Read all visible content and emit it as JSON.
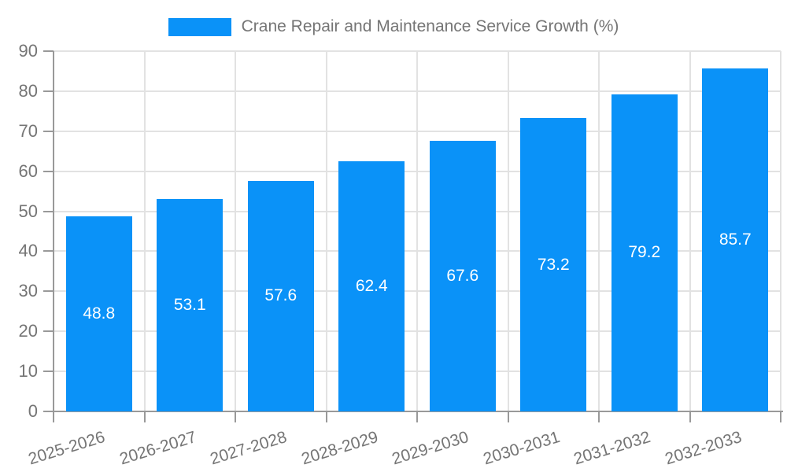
{
  "chart_data": {
    "type": "bar",
    "title": "Crane Repair and Maintenance Service Growth (%)",
    "legend": {
      "label": "Crane Repair and Maintenance Service Growth (%)",
      "position": "top-center",
      "swatch": "rectangle"
    },
    "categories": [
      "2025-2026",
      "2026-2027",
      "2027-2028",
      "2028-2029",
      "2029-2030",
      "2030-2031",
      "2031-2032",
      "2032-2033"
    ],
    "values": [
      48.8,
      53.1,
      57.6,
      62.4,
      67.6,
      73.2,
      79.2,
      85.7
    ],
    "xlabel": "",
    "ylabel": "",
    "ylim": [
      0,
      90
    ],
    "ytick_step": 10,
    "yticks": [
      0,
      10,
      20,
      30,
      40,
      50,
      60,
      70,
      80,
      90
    ],
    "grid": "on",
    "value_labels": "inside-center",
    "xlabel_rotation_deg": -17,
    "colors": {
      "bar": "#0A92F8",
      "grid": "#E2E2E2",
      "axis": "#999999",
      "tick_text": "#757575",
      "legend_text": "#757575",
      "value_label_text": "#FFFFFF",
      "background": "#FFFFFF"
    }
  }
}
